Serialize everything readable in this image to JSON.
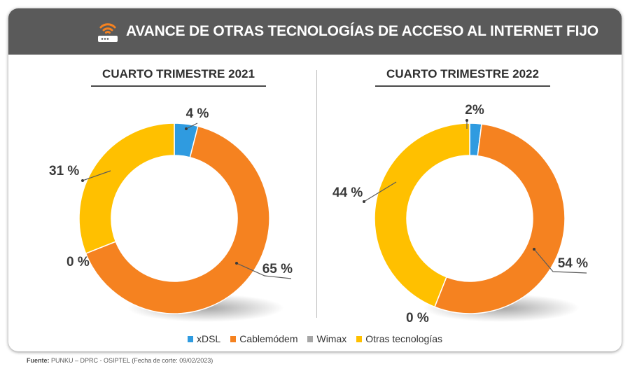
{
  "title": "AVANCE DE OTRAS TECNOLOGÍAS DE ACCESO AL INTERNET FIJO",
  "icon": "router-wifi-icon",
  "source_label": "Fuente:",
  "source_text": "PUNKU – DPRC - OSIPTEL (Fecha de corte: 09/02/2023)",
  "colors": {
    "xDSL": "#2f9be0",
    "Cablemódem": "#f58220",
    "Wimax": "#a6a6a6",
    "Otras tecnologías": "#ffc000",
    "header": "#5a5a5a"
  },
  "chart_data": [
    {
      "type": "pie",
      "donut": true,
      "title": "CUARTO TRIMESTRE 2021",
      "categories": [
        "xDSL",
        "Cablemódem",
        "Wimax",
        "Otras tecnologías"
      ],
      "values": [
        4,
        65,
        0,
        31
      ],
      "labels": [
        "4 %",
        "65 %",
        "0 %",
        "31 %"
      ],
      "legend": "bottom"
    },
    {
      "type": "pie",
      "donut": true,
      "title": "CUARTO TRIMESTRE 2022",
      "categories": [
        "xDSL",
        "Cablemódem",
        "Wimax",
        "Otras tecnologías"
      ],
      "values": [
        2,
        54,
        0,
        44
      ],
      "labels": [
        "2%",
        "54 %",
        "0 %",
        "44 %"
      ],
      "legend": "bottom"
    }
  ],
  "legend": [
    "xDSL",
    "Cablemódem",
    "Wimax",
    "Otras tecnologías"
  ]
}
